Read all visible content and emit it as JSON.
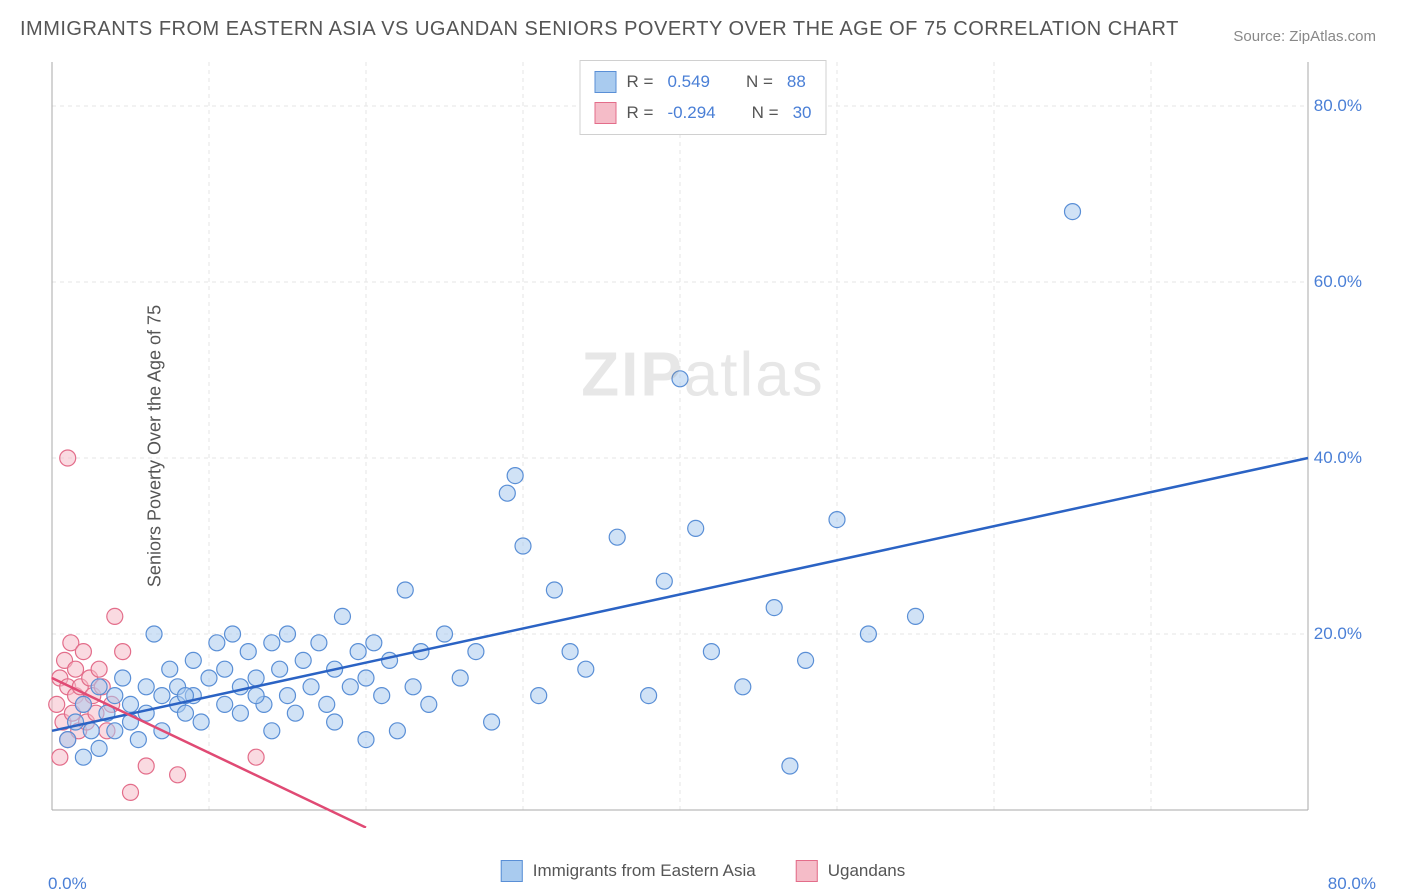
{
  "title": "IMMIGRANTS FROM EASTERN ASIA VS UGANDAN SENIORS POVERTY OVER THE AGE OF 75 CORRELATION CHART",
  "source_label": "Source:",
  "source_name": "ZipAtlas.com",
  "ylabel": "Seniors Poverty Over the Age of 75",
  "watermark_bold": "ZIP",
  "watermark_rest": "atlas",
  "chart": {
    "type": "scatter",
    "xlim": [
      0,
      80
    ],
    "ylim": [
      0,
      85
    ],
    "ytick_values": [
      20,
      40,
      60,
      80
    ],
    "ytick_labels": [
      "20.0%",
      "40.0%",
      "60.0%",
      "80.0%"
    ],
    "x_axis_left_label": "0.0%",
    "x_axis_right_label": "80.0%",
    "background_color": "#ffffff",
    "grid_color": "#e5e5e5",
    "grid_dash": "4,4",
    "axis_border_color": "#aaaaaa",
    "marker_radius": 8,
    "marker_stroke_width": 1.2,
    "trend_line_width": 2.5
  },
  "series": [
    {
      "name": "Immigrants from Eastern Asia",
      "fill_color": "#a9cbef",
      "stroke_color": "#5a8fd6",
      "fill_opacity": 0.55,
      "R": "0.549",
      "N": "88",
      "trend": {
        "x1": 0,
        "y1": 9,
        "x2": 80,
        "y2": 40,
        "color": "#2b63c4"
      },
      "points": [
        [
          1,
          8
        ],
        [
          1.5,
          10
        ],
        [
          2,
          6
        ],
        [
          2,
          12
        ],
        [
          2.5,
          9
        ],
        [
          3,
          7
        ],
        [
          3,
          14
        ],
        [
          3.5,
          11
        ],
        [
          4,
          13
        ],
        [
          4,
          9
        ],
        [
          4.5,
          15
        ],
        [
          5,
          12
        ],
        [
          5,
          10
        ],
        [
          5.5,
          8
        ],
        [
          6,
          14
        ],
        [
          6,
          11
        ],
        [
          6.5,
          20
        ],
        [
          7,
          13
        ],
        [
          7,
          9
        ],
        [
          7.5,
          16
        ],
        [
          8,
          12
        ],
        [
          8,
          14
        ],
        [
          8.5,
          11
        ],
        [
          9,
          17
        ],
        [
          9,
          13
        ],
        [
          9.5,
          10
        ],
        [
          10,
          15
        ],
        [
          10.5,
          19
        ],
        [
          11,
          12
        ],
        [
          11,
          16
        ],
        [
          11.5,
          20
        ],
        [
          12,
          14
        ],
        [
          12,
          11
        ],
        [
          12.5,
          18
        ],
        [
          13,
          15
        ],
        [
          13.5,
          12
        ],
        [
          14,
          19
        ],
        [
          14,
          9
        ],
        [
          14.5,
          16
        ],
        [
          15,
          13
        ],
        [
          15,
          20
        ],
        [
          15.5,
          11
        ],
        [
          16,
          17
        ],
        [
          16.5,
          14
        ],
        [
          17,
          19
        ],
        [
          17.5,
          12
        ],
        [
          18,
          16
        ],
        [
          18,
          10
        ],
        [
          18.5,
          22
        ],
        [
          19,
          14
        ],
        [
          19.5,
          18
        ],
        [
          20,
          15
        ],
        [
          20,
          8
        ],
        [
          20.5,
          19
        ],
        [
          21,
          13
        ],
        [
          21.5,
          17
        ],
        [
          22,
          9
        ],
        [
          22.5,
          25
        ],
        [
          23,
          14
        ],
        [
          23.5,
          18
        ],
        [
          24,
          12
        ],
        [
          25,
          20
        ],
        [
          26,
          15
        ],
        [
          27,
          18
        ],
        [
          28,
          10
        ],
        [
          29,
          36
        ],
        [
          29.5,
          38
        ],
        [
          30,
          30
        ],
        [
          31,
          13
        ],
        [
          32,
          25
        ],
        [
          33,
          18
        ],
        [
          34,
          16
        ],
        [
          36,
          31
        ],
        [
          38,
          13
        ],
        [
          39,
          26
        ],
        [
          40,
          49
        ],
        [
          41,
          32
        ],
        [
          42,
          18
        ],
        [
          44,
          14
        ],
        [
          46,
          23
        ],
        [
          47,
          5
        ],
        [
          48,
          17
        ],
        [
          50,
          33
        ],
        [
          52,
          20
        ],
        [
          55,
          22
        ],
        [
          65,
          68
        ],
        [
          13,
          13
        ],
        [
          8.5,
          13
        ]
      ]
    },
    {
      "name": "Ugandans",
      "fill_color": "#f5bcc8",
      "stroke_color": "#e36d8a",
      "fill_opacity": 0.55,
      "R": "-0.294",
      "N": "30",
      "trend": {
        "x1": 0,
        "y1": 15,
        "x2": 20,
        "y2": -2,
        "color": "#e04a74"
      },
      "points": [
        [
          0.3,
          12
        ],
        [
          0.5,
          15
        ],
        [
          0.7,
          10
        ],
        [
          0.8,
          17
        ],
        [
          1,
          14
        ],
        [
          1,
          8
        ],
        [
          1.2,
          19
        ],
        [
          1.3,
          11
        ],
        [
          1.5,
          13
        ],
        [
          1.5,
          16
        ],
        [
          1.7,
          9
        ],
        [
          1.8,
          14
        ],
        [
          2,
          12
        ],
        [
          2,
          18
        ],
        [
          2.2,
          10
        ],
        [
          2.4,
          15
        ],
        [
          2.6,
          13
        ],
        [
          2.8,
          11
        ],
        [
          3,
          16
        ],
        [
          3.2,
          14
        ],
        [
          3.5,
          9
        ],
        [
          3.8,
          12
        ],
        [
          4,
          22
        ],
        [
          4.5,
          18
        ],
        [
          1,
          40
        ],
        [
          5,
          2
        ],
        [
          6,
          5
        ],
        [
          8,
          4
        ],
        [
          13,
          6
        ],
        [
          0.5,
          6
        ]
      ]
    }
  ],
  "legend_stats_labels": {
    "R": "R =",
    "N": "N ="
  },
  "bottom_legend_label_1": "Immigrants from Eastern Asia",
  "bottom_legend_label_2": "Ugandans"
}
